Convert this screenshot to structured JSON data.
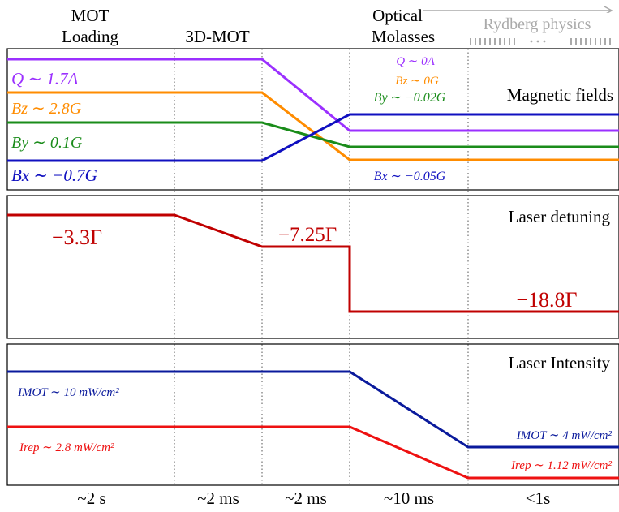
{
  "phases": {
    "mot_loading": {
      "line1": "MOT",
      "line2": "Loading"
    },
    "mot_3d": "3D-MOT",
    "optical_molasses": {
      "line1": "Optical",
      "line2": "Molasses"
    },
    "rydberg": "Rydberg physics"
  },
  "durations": [
    "~2 s",
    "~2 ms",
    "~2 ms",
    "~10 ms",
    "<1s"
  ],
  "panels": {
    "magnetic": {
      "title": "Magnetic fields",
      "labels": {
        "q_left": "Q ∼ 1.7A",
        "bz_left": "Bz ∼ 2.8G",
        "by_left": "By ∼ 0.1G",
        "bx_left": "Bx ∼ −0.7G",
        "q_right": "Q ∼ 0A",
        "bz_right": "Bz ∼ 0G",
        "by_right": "By ∼ −0.02G",
        "bx_right": "Bx ∼ −0.05G"
      },
      "colors": {
        "Q": "#9b30ff",
        "Bz": "#ff8c00",
        "By": "#1a8c1a",
        "Bx": "#1010c0"
      }
    },
    "detuning": {
      "title": "Laser detuning",
      "labels": {
        "d1": "−3.3Γ",
        "d2": "−7.25Γ",
        "d3": "−18.8Γ"
      },
      "color": "#c00000"
    },
    "intensity": {
      "title": "Laser Intensity",
      "labels": {
        "imot_left": "IMOT ∼ 10 mW/cm²",
        "irep_left": "Irep ∼ 2.8 mW/cm²",
        "imot_right": "IMOT ∼ 4 mW/cm²",
        "irep_right": "Irep ∼ 1.12 mW/cm²"
      },
      "colors": {
        "IMOT": "#0a1a9c",
        "Irep": "#ee1111"
      }
    }
  }
}
